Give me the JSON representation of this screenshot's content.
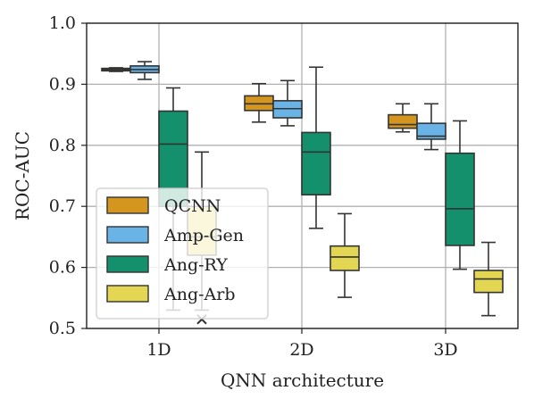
{
  "chart_data": {
    "type": "box",
    "title": "",
    "xlabel": "QNN architecture",
    "ylabel": "ROC-AUC",
    "categories": [
      "1D",
      "2D",
      "3D"
    ],
    "ylim": [
      0.5,
      1.0
    ],
    "yticks": [
      "0.5",
      "0.6",
      "0.7",
      "0.8",
      "0.9",
      "1.0"
    ],
    "grid": true,
    "legend_position": "lower-left",
    "series": [
      {
        "name": "QCNN",
        "color": "#d4961f",
        "boxes": [
          {
            "category": "1D",
            "whisker_low": 0.921,
            "q1": 0.922,
            "median": 0.924,
            "q3": 0.926,
            "whisker_high": 0.927,
            "outliers": []
          },
          {
            "category": "2D",
            "whisker_low": 0.838,
            "q1": 0.857,
            "median": 0.868,
            "q3": 0.881,
            "whisker_high": 0.901,
            "outliers": []
          },
          {
            "category": "3D",
            "whisker_low": 0.822,
            "q1": 0.828,
            "median": 0.834,
            "q3": 0.85,
            "whisker_high": 0.868,
            "outliers": []
          }
        ]
      },
      {
        "name": "Amp-Gen",
        "color": "#6ab3e6",
        "boxes": [
          {
            "category": "1D",
            "whisker_low": 0.908,
            "q1": 0.919,
            "median": 0.924,
            "q3": 0.93,
            "whisker_high": 0.937,
            "outliers": []
          },
          {
            "category": "2D",
            "whisker_low": 0.832,
            "q1": 0.845,
            "median": 0.86,
            "q3": 0.873,
            "whisker_high": 0.906,
            "outliers": []
          },
          {
            "category": "3D",
            "whisker_low": 0.793,
            "q1": 0.81,
            "median": 0.815,
            "q3": 0.836,
            "whisker_high": 0.868,
            "outliers": []
          }
        ]
      },
      {
        "name": "Ang-RY",
        "color": "#14906c",
        "boxes": [
          {
            "category": "1D",
            "whisker_low": 0.53,
            "q1": 0.7,
            "median": 0.802,
            "q3": 0.856,
            "whisker_high": 0.894,
            "outliers": []
          },
          {
            "category": "2D",
            "whisker_low": 0.664,
            "q1": 0.719,
            "median": 0.789,
            "q3": 0.821,
            "whisker_high": 0.928,
            "outliers": []
          },
          {
            "category": "3D",
            "whisker_low": 0.597,
            "q1": 0.636,
            "median": 0.696,
            "q3": 0.787,
            "whisker_high": 0.84,
            "outliers": []
          }
        ]
      },
      {
        "name": "Ang-Arb",
        "color": "#e3d653",
        "boxes": [
          {
            "category": "1D",
            "whisker_low": 0.53,
            "q1": 0.62,
            "median": 0.65,
            "q3": 0.7,
            "whisker_high": 0.789,
            "outliers": [
              0.515
            ]
          },
          {
            "category": "2D",
            "whisker_low": 0.551,
            "q1": 0.595,
            "median": 0.617,
            "q3": 0.635,
            "whisker_high": 0.688,
            "outliers": []
          },
          {
            "category": "3D",
            "whisker_low": 0.521,
            "q1": 0.559,
            "median": 0.581,
            "q3": 0.595,
            "whisker_high": 0.641,
            "outliers": []
          }
        ]
      }
    ]
  }
}
